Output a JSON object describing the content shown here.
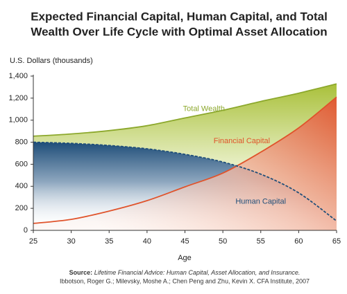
{
  "chart_data": {
    "type": "area",
    "title": [
      "Expected Financial Capital, Human Capital, and Total",
      "Wealth Over Life Cycle with Optimal Asset Allocation"
    ],
    "y_label": "U.S. Dollars (thousands)",
    "x_label": "Age",
    "x": [
      25,
      30,
      35,
      40,
      45,
      50,
      55,
      60,
      65
    ],
    "series": [
      {
        "name": "Total Wealth",
        "color": "#8ca82c",
        "values": [
          855,
          875,
          905,
          950,
          1020,
          1090,
          1170,
          1245,
          1330
        ]
      },
      {
        "name": "Financial Capital",
        "color": "#e0532b",
        "values": [
          63,
          100,
          175,
          270,
          395,
          520,
          710,
          930,
          1210
        ]
      },
      {
        "name": "Human Capital",
        "color": "#1f4e79",
        "values": [
          800,
          790,
          770,
          740,
          690,
          620,
          510,
          340,
          85
        ],
        "dashed": true
      }
    ],
    "xlim": [
      25,
      65
    ],
    "xticks": [
      25,
      30,
      35,
      40,
      45,
      50,
      55,
      60,
      65
    ],
    "ylim": [
      0,
      1400
    ],
    "yticks": [
      0,
      200,
      400,
      600,
      800,
      {
        "value": 1000,
        "label": "1,000"
      },
      {
        "value": 1200,
        "label": "1,200"
      },
      {
        "value": 1400,
        "label": "1,400"
      }
    ],
    "source": {
      "label": "Source:",
      "title": "Lifetime Financial Advice: Human Capital, Asset Allocation, and Insurance.",
      "authors": "Ibbotson, Roger G.; Milevsky, Moshe A.; Chen Peng and Zhu, Kevin X. CFA Institute, 2007"
    }
  }
}
